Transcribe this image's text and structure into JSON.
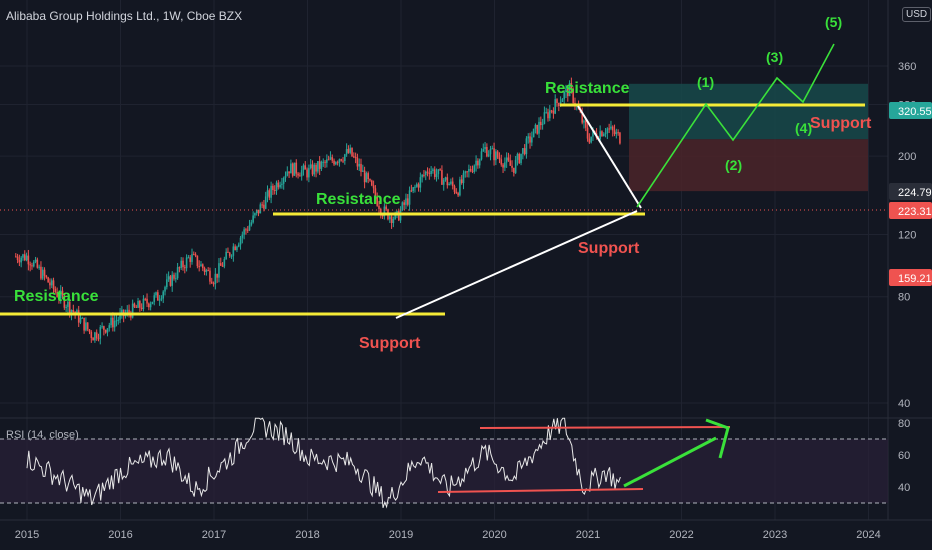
{
  "header": {
    "title": "Alibaba Group Holdings Ltd., 1W, Cboe BZX",
    "currency": "USD"
  },
  "rsi_label": "RSI (14, close)",
  "colors": {
    "background": "#131722",
    "grid": "#1f2330",
    "up_candle": "#26a69a",
    "down_candle": "#ef5350",
    "level_line": "#f5eb37",
    "label_green": "#39e03a",
    "label_red": "#f05350",
    "projection": "#3ae13a",
    "trend_line": "#ffffff",
    "target_zone": "#17494a",
    "stop_zone": "#4b2429",
    "rsi_band": "#2a2138",
    "rsi_line": "#e8e8e8"
  },
  "chart_data": [
    {
      "type": "line",
      "title": "Alibaba Group Holdings Ltd., 1W, Cboe BZX",
      "description_of_marks": "weekly candlesticks",
      "y_scale": "log",
      "yticks": [
        40,
        80,
        120,
        200,
        280,
        360
      ],
      "xticks": [
        "2015",
        "2016",
        "2017",
        "2018",
        "2019",
        "2020",
        "2021",
        "2022",
        "2023",
        "2024"
      ],
      "series": [
        {
          "values_by_year": [
            {
              "x": 2015.0,
              "y": 104
            },
            {
              "x": 2015.3,
              "y": 83
            },
            {
              "x": 2015.7,
              "y": 62
            },
            {
              "x": 2016.0,
              "y": 70
            },
            {
              "x": 2016.4,
              "y": 80
            },
            {
              "x": 2016.75,
              "y": 104
            },
            {
              "x": 2017.0,
              "y": 90
            },
            {
              "x": 2017.4,
              "y": 130
            },
            {
              "x": 2017.8,
              "y": 185
            },
            {
              "x": 2018.0,
              "y": 180
            },
            {
              "x": 2018.45,
              "y": 205
            },
            {
              "x": 2018.8,
              "y": 140
            },
            {
              "x": 2018.95,
              "y": 133
            },
            {
              "x": 2019.3,
              "y": 185
            },
            {
              "x": 2019.6,
              "y": 160
            },
            {
              "x": 2019.9,
              "y": 210
            },
            {
              "x": 2020.2,
              "y": 185
            },
            {
              "x": 2020.55,
              "y": 260
            },
            {
              "x": 2020.8,
              "y": 310
            },
            {
              "x": 2021.0,
              "y": 225
            },
            {
              "x": 2021.2,
              "y": 240
            },
            {
              "x": 2021.35,
              "y": 225
            }
          ]
        }
      ],
      "price_labels": [
        {
          "value": 320.55,
          "text": "320.55",
          "color": "#26a69a"
        },
        {
          "value": 224.79,
          "text": "224.79",
          "color": "#2a2e39"
        },
        {
          "value": 223.31,
          "text": "223.31",
          "color": "#ef5350"
        },
        {
          "value": 159.21,
          "text": "159.21",
          "color": "#ef5350"
        }
      ],
      "annotations": [
        {
          "text": "Resistance",
          "color": "green"
        },
        {
          "text": "Resistance",
          "color": "green"
        },
        {
          "text": "Resistance",
          "color": "green"
        },
        {
          "text": "Support",
          "color": "red"
        },
        {
          "text": "Support",
          "color": "red"
        },
        {
          "text": "Support",
          "color": "red"
        },
        {
          "text": "(1)",
          "color": "green"
        },
        {
          "text": "(2)",
          "color": "green"
        },
        {
          "text": "(3)",
          "color": "green"
        },
        {
          "text": "(4)",
          "color": "green"
        },
        {
          "text": "(5)",
          "color": "green"
        }
      ]
    },
    {
      "type": "line",
      "title": "RSI (14, close)",
      "yticks": [
        40,
        60,
        80
      ],
      "bands": [
        30,
        70
      ],
      "values_by_year": [
        {
          "x": 2015.0,
          "y": 58
        },
        {
          "x": 2015.5,
          "y": 40
        },
        {
          "x": 2015.7,
          "y": 32
        },
        {
          "x": 2016.0,
          "y": 50
        },
        {
          "x": 2016.5,
          "y": 60
        },
        {
          "x": 2016.8,
          "y": 38
        },
        {
          "x": 2017.2,
          "y": 60
        },
        {
          "x": 2017.45,
          "y": 80
        },
        {
          "x": 2017.8,
          "y": 72
        },
        {
          "x": 2018.0,
          "y": 58
        },
        {
          "x": 2018.5,
          "y": 55
        },
        {
          "x": 2018.85,
          "y": 30
        },
        {
          "x": 2019.2,
          "y": 60
        },
        {
          "x": 2019.5,
          "y": 38
        },
        {
          "x": 2019.9,
          "y": 62
        },
        {
          "x": 2020.2,
          "y": 45
        },
        {
          "x": 2020.6,
          "y": 75
        },
        {
          "x": 2020.75,
          "y": 80
        },
        {
          "x": 2020.95,
          "y": 40
        },
        {
          "x": 2021.2,
          "y": 50
        },
        {
          "x": 2021.35,
          "y": 40
        }
      ]
    }
  ]
}
